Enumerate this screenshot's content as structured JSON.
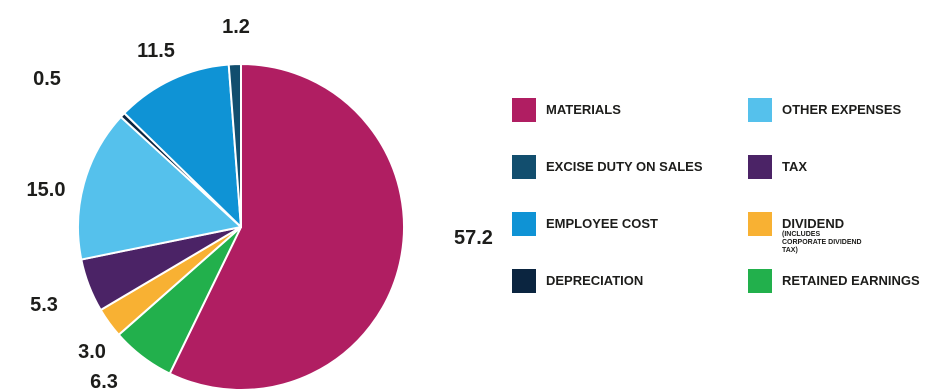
{
  "chart_data": {
    "type": "pie",
    "slices": [
      {
        "key": "materials",
        "label": "MATERIALS",
        "value": 57.2,
        "value_label": "57.2",
        "color": "#b01e62"
      },
      {
        "key": "retained",
        "label": "RETAINED EARNINGS",
        "value": 6.3,
        "value_label": "6.3",
        "color": "#22b04c"
      },
      {
        "key": "dividend",
        "label": "DIVIDEND",
        "note": "(INCLUDES CORPORATE DIVIDEND TAX)",
        "value": 3.0,
        "value_label": "3.0",
        "color": "#f8b133"
      },
      {
        "key": "tax",
        "label": "TAX",
        "value": 5.3,
        "value_label": "5.3",
        "color": "#4b2366"
      },
      {
        "key": "other",
        "label": "OTHER EXPENSES",
        "value": 15.0,
        "value_label": "15.0",
        "color": "#55c1ec"
      },
      {
        "key": "depreciation",
        "label": "DEPRECIATION",
        "value": 0.5,
        "value_label": "0.5",
        "color": "#0b2540"
      },
      {
        "key": "employee",
        "label": "EMPLOYEE COST",
        "value": 11.5,
        "value_label": "11.5",
        "color": "#0f93d5"
      },
      {
        "key": "excise",
        "label": "EXCISE DUTY ON SALES",
        "value": 1.2,
        "value_label": "1.2",
        "color": "#124e6e"
      }
    ],
    "legend_order": [
      "materials",
      "other",
      "excise",
      "tax",
      "employee",
      "dividend",
      "depreciation",
      "retained"
    ],
    "legend_position": "right"
  }
}
